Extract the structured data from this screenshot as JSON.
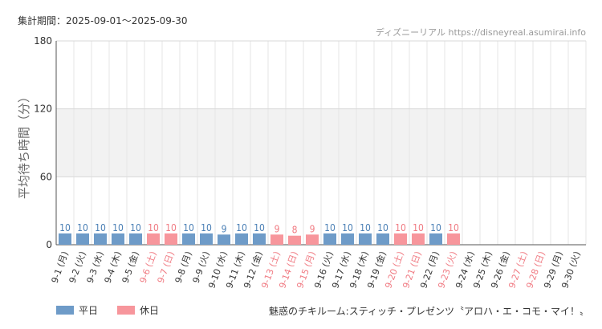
{
  "header": {
    "period": "集計期間：2025-09-01～2025-09-30",
    "source": "ディズニーリアル https://disneyreal.asumirai.info"
  },
  "footer": {
    "attraction": "魅惑のチキルーム:スティッチ・プレゼンツ〝アロハ・エ・コモ・マイ！〟"
  },
  "colors": {
    "weekday": "#6e9bc8",
    "holiday": "#f7969c",
    "weekday_label": "#4a7fb5",
    "holiday_label": "#f07a82",
    "band": "#f2f2f2"
  },
  "chart_data": {
    "type": "bar",
    "ylabel": "平均待ち時間（分）",
    "ylim": [
      0,
      180
    ],
    "yticks": [
      0,
      60,
      120,
      180
    ],
    "legend": [
      "平日",
      "休日"
    ],
    "legend_position": "bottom-left",
    "grid": true,
    "categories": [
      "9-1 (月)",
      "9-2 (火)",
      "9-3 (水)",
      "9-4 (木)",
      "9-5 (金)",
      "9-6 (土)",
      "9-7 (日)",
      "9-8 (月)",
      "9-9 (火)",
      "9-10 (水)",
      "9-11 (木)",
      "9-12 (金)",
      "9-13 (土)",
      "9-14 (日)",
      "9-15 (月)",
      "9-16 (火)",
      "9-17 (水)",
      "9-18 (木)",
      "9-19 (金)",
      "9-20 (土)",
      "9-21 (日)",
      "9-22 (月)",
      "9-23 (火)",
      "9-24 (水)",
      "9-25 (木)",
      "9-26 (金)",
      "9-27 (土)",
      "9-28 (日)",
      "9-29 (月)",
      "9-30 (火)"
    ],
    "values": [
      10,
      10,
      10,
      10,
      10,
      10,
      10,
      10,
      10,
      9,
      10,
      10,
      9,
      8,
      9,
      10,
      10,
      10,
      10,
      10,
      10,
      10,
      10,
      null,
      null,
      null,
      null,
      null,
      null,
      null
    ],
    "day_type": [
      "平日",
      "平日",
      "平日",
      "平日",
      "平日",
      "休日",
      "休日",
      "平日",
      "平日",
      "平日",
      "平日",
      "平日",
      "休日",
      "休日",
      "休日",
      "平日",
      "平日",
      "平日",
      "平日",
      "休日",
      "休日",
      "平日",
      "休日",
      "平日",
      "平日",
      "平日",
      "休日",
      "休日",
      "平日",
      "平日"
    ]
  }
}
